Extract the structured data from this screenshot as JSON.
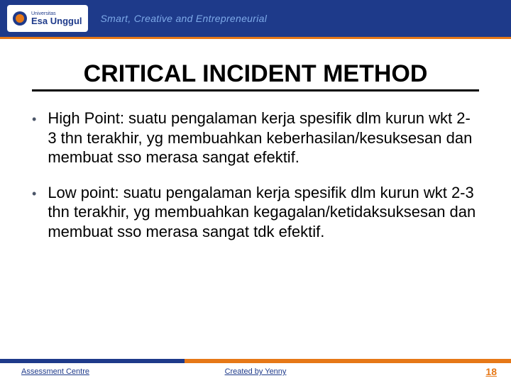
{
  "header": {
    "logo_uni": "Universitas",
    "logo_name": "Esa Unggul",
    "tagline": "Smart, Creative and Entrepreneurial"
  },
  "title": "CRITICAL INCIDENT METHOD",
  "bullets": [
    "High Point: suatu pengalaman kerja spesifik dlm kurun wkt 2-3 thn terakhir, yg membuahkan keberhasilan/kesuksesan dan membuat sso merasa sangat efektif.",
    "Low point: suatu pengalaman kerja spesifik dlm kurun wkt 2-3 thn terakhir, yg membuahkan kegagalan/ketidaksuksesan dan membuat sso merasa sangat tdk efektif."
  ],
  "footer": {
    "left": "Assessment Centre",
    "center": "Created by Yenny",
    "page": "18"
  },
  "colors": {
    "header_bg": "#1e3a8a",
    "accent": "#e67817",
    "tagline": "#7da9e8"
  }
}
